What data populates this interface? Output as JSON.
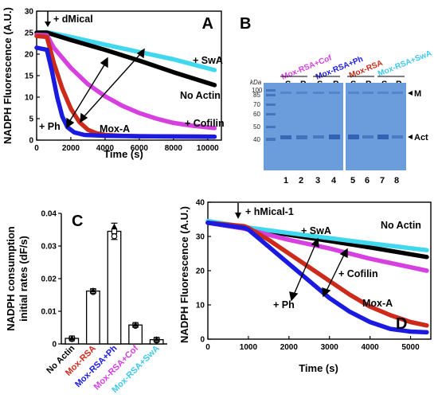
{
  "chart_data": [
    {
      "panel": "A",
      "type": "line",
      "xlabel": "Time (s)",
      "ylabel": "NADPH Fluorescence (A.U.)",
      "xlim": [
        0,
        10800
      ],
      "ylim": [
        0,
        30
      ],
      "xticks": [
        0,
        2000,
        4000,
        6000,
        8000,
        10000
      ],
      "yticks": [
        0,
        5,
        10,
        15,
        20,
        25,
        30
      ],
      "annotations": [
        "+ dMical",
        "+ SwA",
        "No Actin",
        "+ Cofilin",
        "Mox-A",
        "+ Ph"
      ],
      "colors": {
        "swa": "#40d8ee",
        "noactin": "#000000",
        "cofilin": "#d63fe0",
        "moxa": "#cc2a1a",
        "ph": "#1a1ae0"
      },
      "series": [
        {
          "name": "+ SwA",
          "color": "#40d8ee",
          "points": [
            [
              0,
              25
            ],
            [
              600,
              25.1
            ],
            [
              2000,
              24
            ],
            [
              4000,
              22.2
            ],
            [
              6000,
              20.5
            ],
            [
              8000,
              18.8
            ],
            [
              10400,
              16.3
            ]
          ]
        },
        {
          "name": "No Actin",
          "color": "#000000",
          "points": [
            [
              0,
              25
            ],
            [
              600,
              25
            ],
            [
              2000,
              23.3
            ],
            [
              4000,
              21
            ],
            [
              6000,
              18.5
            ],
            [
              8000,
              15.8
            ],
            [
              10400,
              12.8
            ]
          ]
        },
        {
          "name": "+ Cofilin",
          "color": "#d63fe0",
          "points": [
            [
              0,
              24.5
            ],
            [
              600,
              24.4
            ],
            [
              1000,
              21.5
            ],
            [
              2000,
              16.8
            ],
            [
              3000,
              13
            ],
            [
              4000,
              10.2
            ],
            [
              5000,
              8
            ],
            [
              6000,
              6.3
            ],
            [
              7000,
              5
            ],
            [
              8000,
              4
            ],
            [
              9000,
              3.4
            ],
            [
              10400,
              2.8
            ]
          ]
        },
        {
          "name": "Mox-A",
          "color": "#cc2a1a",
          "points": [
            [
              0,
              24.2
            ],
            [
              600,
              24
            ],
            [
              1000,
              18
            ],
            [
              1500,
              12
            ],
            [
              2000,
              7.3
            ],
            [
              2500,
              4.2
            ],
            [
              3000,
              2.4
            ],
            [
              3500,
              1.6
            ],
            [
              4000,
              1.2
            ],
            [
              5000,
              1
            ],
            [
              6000,
              0.9
            ],
            [
              10400,
              0.8
            ]
          ]
        },
        {
          "name": "+ Ph",
          "color": "#1a1ae0",
          "points": [
            [
              0,
              21.5
            ],
            [
              600,
              21
            ],
            [
              900,
              16
            ],
            [
              1200,
              10
            ],
            [
              1500,
              5.5
            ],
            [
              1800,
              3
            ],
            [
              2200,
              1.8
            ],
            [
              2800,
              1.2
            ],
            [
              4000,
              1
            ],
            [
              6000,
              0.9
            ],
            [
              10400,
              0.8
            ]
          ]
        }
      ]
    },
    {
      "panel": "C",
      "type": "bar",
      "ylabel_line1": "NADPH consumption",
      "ylabel_line2": "initial rates (dF/s)",
      "ylim": [
        0,
        0.04
      ],
      "yticks": [
        0,
        0.01,
        0.02,
        0.03,
        0.04
      ],
      "categories": [
        "No Actin",
        "Mox-RSA",
        "Mox-RSA+Ph",
        "Mox-RSA+Cof",
        "Mox-RSA+SwA"
      ],
      "category_colors": [
        "#000000",
        "#cc2a1a",
        "#1a1ae0",
        "#d63fe0",
        "#40c8ee"
      ],
      "values": [
        0.0017,
        0.0162,
        0.0345,
        0.0058,
        0.0013
      ],
      "errors": [
        0.0003,
        0.0005,
        0.0025,
        0.0004,
        0.0004
      ]
    },
    {
      "panel": "D",
      "type": "line",
      "xlabel": "Time (s)",
      "ylabel": "NADPH Fluorescence (A.U.)",
      "xlim": [
        0,
        5500
      ],
      "ylim": [
        0,
        40
      ],
      "xticks": [
        0,
        1000,
        2000,
        3000,
        4000,
        5000
      ],
      "yticks": [
        0,
        10,
        20,
        30,
        40
      ],
      "annotations": [
        "+ hMical-1",
        "+ SwA",
        "No Actin",
        "+ Cofilin",
        "+ Ph",
        "Mox-A"
      ],
      "series": [
        {
          "name": "No Actin",
          "color": "#000000",
          "points": [
            [
              0,
              34
            ],
            [
              800,
              32.5
            ],
            [
              1000,
              32.4
            ],
            [
              2000,
              30.5
            ],
            [
              3000,
              28.7
            ],
            [
              4000,
              26.8
            ],
            [
              5400,
              24
            ]
          ]
        },
        {
          "name": "+ SwA",
          "color": "#40d8ee",
          "points": [
            [
              0,
              34.5
            ],
            [
              800,
              33
            ],
            [
              1000,
              32.6
            ],
            [
              2000,
              31
            ],
            [
              3000,
              29.5
            ],
            [
              4000,
              28
            ],
            [
              5400,
              26
            ]
          ]
        },
        {
          "name": "+ Cofilin",
          "color": "#d63fe0",
          "points": [
            [
              0,
              34
            ],
            [
              800,
              32.5
            ],
            [
              1000,
              32
            ],
            [
              1500,
              30.5
            ],
            [
              2000,
              29
            ],
            [
              3000,
              26.5
            ],
            [
              4000,
              23.5
            ],
            [
              5400,
              20
            ]
          ]
        },
        {
          "name": "Mox-A",
          "color": "#cc2a1a",
          "points": [
            [
              0,
              34
            ],
            [
              900,
              33
            ],
            [
              1000,
              32.5
            ],
            [
              1500,
              29
            ],
            [
              2000,
              25
            ],
            [
              2500,
              21
            ],
            [
              3000,
              17
            ],
            [
              3500,
              13
            ],
            [
              4000,
              9.5
            ],
            [
              4500,
              7
            ],
            [
              5000,
              5
            ],
            [
              5400,
              4
            ]
          ]
        },
        {
          "name": "+ Ph",
          "color": "#1a1ae0",
          "points": [
            [
              0,
              34
            ],
            [
              900,
              32.5
            ],
            [
              1000,
              32
            ],
            [
              1500,
              27
            ],
            [
              2000,
              22
            ],
            [
              2500,
              17
            ],
            [
              3000,
              12
            ],
            [
              3500,
              8
            ],
            [
              4000,
              5
            ],
            [
              4500,
              3
            ],
            [
              5000,
              2.2
            ],
            [
              5400,
              2
            ]
          ]
        }
      ]
    }
  ],
  "panel_b": {
    "group_labels": [
      "Mox-RSA+Cof",
      "Mox-RSA+Ph",
      "Mox-RSA",
      "Mox-RSA+SwA"
    ],
    "group_colors": [
      "#d63fe0",
      "#1a1ae0",
      "#cc2a1a",
      "#40c8ee"
    ],
    "sp_labels": [
      "S",
      "P",
      "S",
      "P",
      "S",
      "P",
      "S",
      "P"
    ],
    "kda_label": "kDa",
    "markers": [
      "100",
      "85",
      "70",
      "60",
      "50",
      "40"
    ],
    "band_m": "M",
    "band_act": "Act",
    "lane_numbers": [
      "1",
      "2",
      "3",
      "4",
      "5",
      "6",
      "7",
      "8"
    ]
  },
  "panel_letters": [
    "A",
    "B",
    "C",
    "D"
  ]
}
